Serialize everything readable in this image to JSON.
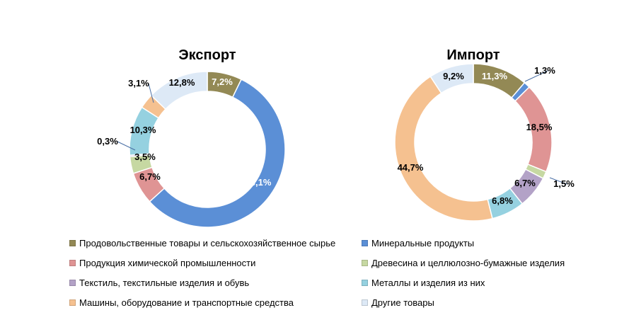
{
  "colors": {
    "food": "#938955",
    "minerals": "#5b8fd6",
    "chemical": "#df9494",
    "wood": "#c6d8a2",
    "textile": "#b3a2c7",
    "metals": "#95d1e0",
    "machines": "#f5c190",
    "other": "#dde9f6"
  },
  "legend": [
    {
      "key": "food",
      "label": "Продовольственные товары и сельскохозяйственное сырье"
    },
    {
      "key": "minerals",
      "label": "Минеральные продукты"
    },
    {
      "key": "chemical",
      "label": "Продукция химической промышленности"
    },
    {
      "key": "wood",
      "label": "Древесина и целлюлозно-бумажные изделия"
    },
    {
      "key": "textile",
      "label": "Текстиль, текстильные изделия и обувь"
    },
    {
      "key": "metals",
      "label": "Металлы и изделия из них"
    },
    {
      "key": "machines",
      "label": "Машины, оборудование и транспортные средства"
    },
    {
      "key": "other",
      "label": "Другие товары"
    }
  ],
  "chart_data": [
    {
      "type": "pie",
      "title": "Экспорт",
      "slices": [
        {
          "key": "food",
          "value": 7.2,
          "label": "7,2%"
        },
        {
          "key": "minerals",
          "value": 56.1,
          "label": "56,1%"
        },
        {
          "key": "chemical",
          "value": 6.7,
          "label": "6,7%"
        },
        {
          "key": "wood",
          "value": 3.5,
          "label": "3,5%"
        },
        {
          "key": "textile",
          "value": 0.3,
          "label": "0,3%"
        },
        {
          "key": "metals",
          "value": 10.3,
          "label": "10,3%"
        },
        {
          "key": "machines",
          "value": 3.1,
          "label": "3,1%"
        },
        {
          "key": "other",
          "value": 12.8,
          "label": "12,8%"
        }
      ]
    },
    {
      "type": "pie",
      "title": "Импорт",
      "slices": [
        {
          "key": "food",
          "value": 11.3,
          "label": "11,3%"
        },
        {
          "key": "minerals",
          "value": 1.3,
          "label": "1,3%"
        },
        {
          "key": "chemical",
          "value": 18.5,
          "label": "18,5%"
        },
        {
          "key": "wood",
          "value": 1.5,
          "label": "1,5%"
        },
        {
          "key": "textile",
          "value": 6.7,
          "label": "6,7%"
        },
        {
          "key": "metals",
          "value": 6.8,
          "label": "6,8%"
        },
        {
          "key": "machines",
          "value": 44.7,
          "label": "44,7%"
        },
        {
          "key": "other",
          "value": 9.2,
          "label": "9,2%"
        }
      ]
    }
  ]
}
